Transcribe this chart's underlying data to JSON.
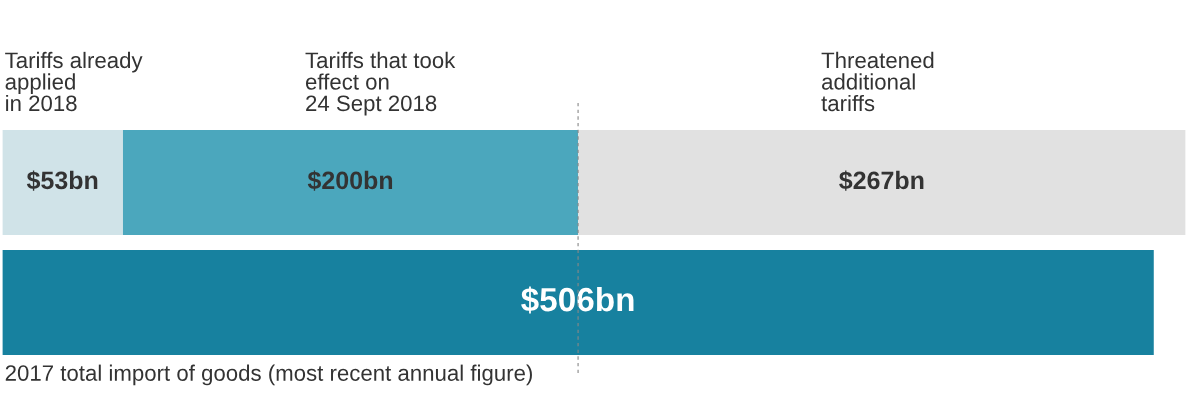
{
  "chart_data": {
    "type": "bar",
    "orientation": "horizontal",
    "stacked": true,
    "categories": [
      null,
      null
    ],
    "tick_labels": false,
    "legend": false,
    "series": [
      {
        "name": "Tariffs already\napplied\nin 2018",
        "color": "#d0e3e8",
        "values": [
          53,
          null
        ],
        "value_labels": [
          "$53bn",
          null
        ]
      },
      {
        "name": "Tariffs that took\neffect on\n24 Sept 2018",
        "color": "#4ba7bd",
        "values": [
          200,
          null
        ],
        "value_labels": [
          "$200bn",
          null
        ]
      },
      {
        "name": "Threatened\nadditional\ntariffs",
        "color": "#e1e1e1",
        "values": [
          267,
          null
        ],
        "value_labels": [
          "$267bn",
          null
        ]
      },
      {
        "name": "2017 total import of goods (most recent annual figure)",
        "color": "#17819f",
        "values": [
          null,
          506
        ],
        "value_labels": [
          null,
          "$506bn"
        ]
      }
    ],
    "ref_lines": [
      {
        "axis": "x",
        "value": 253,
        "color": "#888888",
        "line_style": "dashed"
      }
    ]
  }
}
